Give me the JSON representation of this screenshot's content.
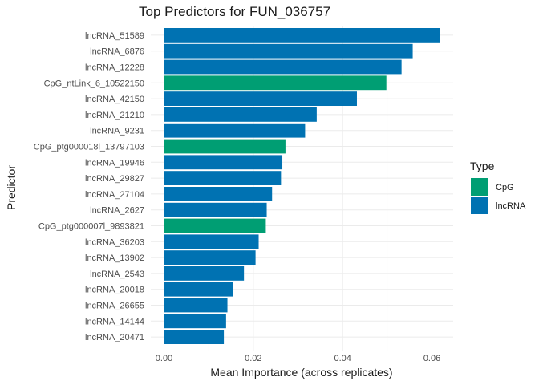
{
  "chart_data": {
    "type": "bar",
    "orientation": "horizontal",
    "title": "Top Predictors for FUN_036757",
    "xlabel": "Mean Importance (across replicates)",
    "ylabel": "Predictor",
    "xlim": [
      0,
      0.0645
    ],
    "xticks": [
      0,
      0.02,
      0.04,
      0.06
    ],
    "xtick_labels": [
      "0.00",
      "0.02",
      "0.04",
      "0.06"
    ],
    "grid": true,
    "legend": {
      "title": "Type",
      "position": "right",
      "entries": [
        {
          "label": "CpG",
          "color": "#009E73"
        },
        {
          "label": "lncRNA",
          "color": "#0072B2"
        }
      ]
    },
    "colors": {
      "CpG": "#009E73",
      "lncRNA": "#0072B2"
    },
    "categories": [
      "lncRNA_51589",
      "lncRNA_6876",
      "lncRNA_12228",
      "CpG_ntLink_6_10522150",
      "lncRNA_42150",
      "lncRNA_21210",
      "lncRNA_9231",
      "CpG_ptg000018l_13797103",
      "lncRNA_19946",
      "lncRNA_29827",
      "lncRNA_27104",
      "lncRNA_2627",
      "CpG_ptg000007l_9893821",
      "lncRNA_36203",
      "lncRNA_13902",
      "lncRNA_2543",
      "lncRNA_20018",
      "lncRNA_26655",
      "lncRNA_14144",
      "lncRNA_20471"
    ],
    "values": [
      0.0618,
      0.0557,
      0.0532,
      0.0498,
      0.0432,
      0.0342,
      0.0316,
      0.0272,
      0.0265,
      0.0262,
      0.0242,
      0.023,
      0.0228,
      0.0212,
      0.0205,
      0.0179,
      0.0155,
      0.0142,
      0.0139,
      0.0134
    ],
    "types": [
      "lncRNA",
      "lncRNA",
      "lncRNA",
      "CpG",
      "lncRNA",
      "lncRNA",
      "lncRNA",
      "CpG",
      "lncRNA",
      "lncRNA",
      "lncRNA",
      "lncRNA",
      "CpG",
      "lncRNA",
      "lncRNA",
      "lncRNA",
      "lncRNA",
      "lncRNA",
      "lncRNA",
      "lncRNA"
    ]
  }
}
